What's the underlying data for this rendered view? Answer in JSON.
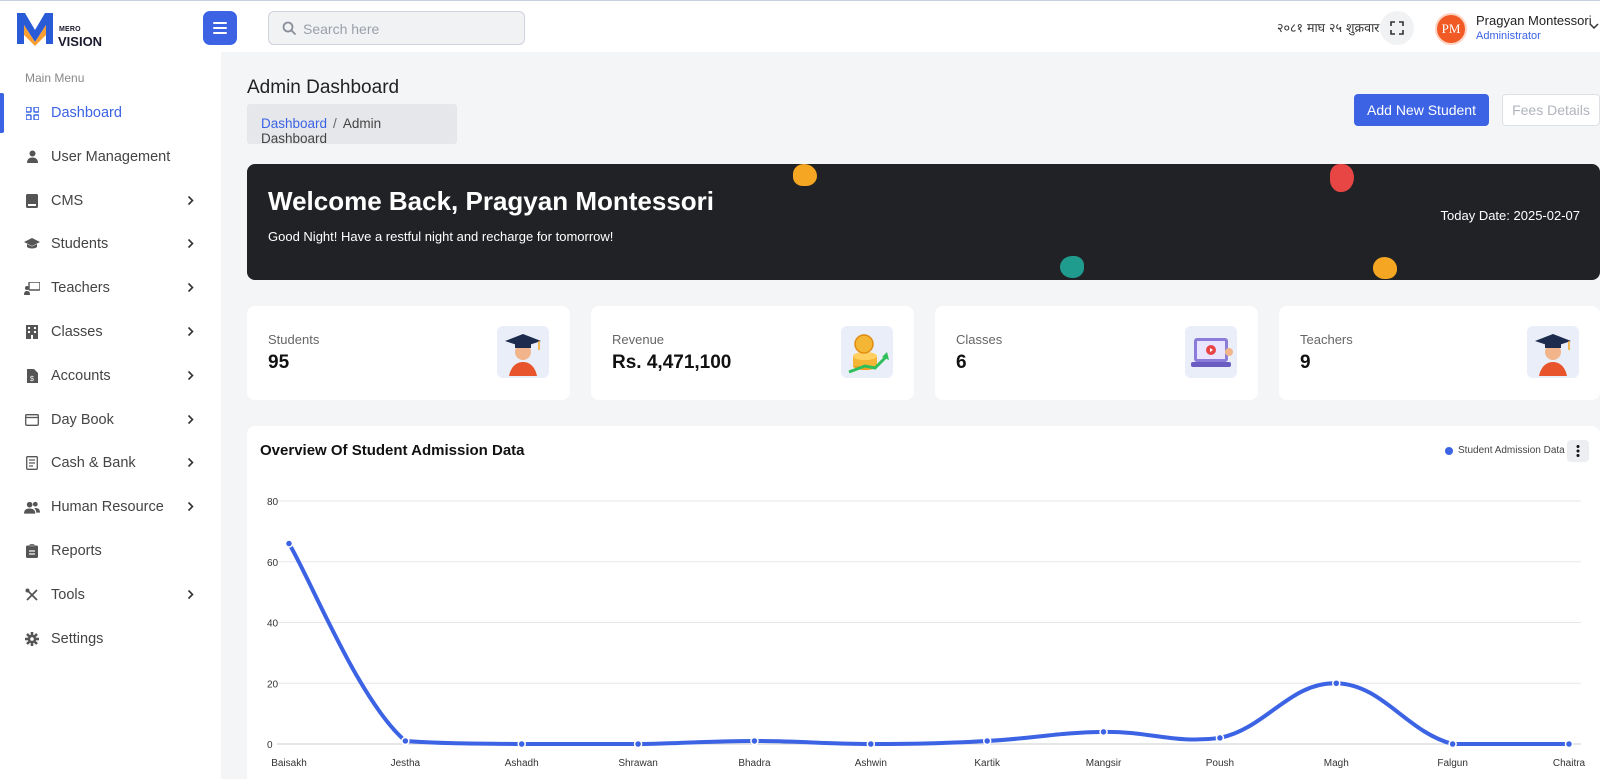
{
  "brand": {
    "small": "MERO",
    "big": "VISION"
  },
  "search": {
    "placeholder": "Search here"
  },
  "header": {
    "nepali_date": "२०८१ माघ २५ शुक्रवार",
    "user_initials": "PM",
    "user_name": "Pragyan Montessori",
    "user_role": "Administrator"
  },
  "sidebar": {
    "title": "Main Menu",
    "items": [
      {
        "label": "Dashboard",
        "icon": "grid-icon",
        "active": true,
        "chevron": false
      },
      {
        "label": "User Management",
        "icon": "user-icon",
        "active": false,
        "chevron": false
      },
      {
        "label": "CMS",
        "icon": "book-icon",
        "active": false,
        "chevron": true
      },
      {
        "label": "Students",
        "icon": "graduation-cap-icon",
        "active": false,
        "chevron": true
      },
      {
        "label": "Teachers",
        "icon": "teacher-board-icon",
        "active": false,
        "chevron": true
      },
      {
        "label": "Classes",
        "icon": "building-icon",
        "active": false,
        "chevron": true
      },
      {
        "label": "Accounts",
        "icon": "file-invoice-icon",
        "active": false,
        "chevron": true
      },
      {
        "label": "Day Book",
        "icon": "window-icon",
        "active": false,
        "chevron": true
      },
      {
        "label": "Cash & Bank",
        "icon": "receipt-icon",
        "active": false,
        "chevron": true
      },
      {
        "label": "Human Resource",
        "icon": "users-icon",
        "active": false,
        "chevron": true
      },
      {
        "label": "Reports",
        "icon": "clipboard-icon",
        "active": false,
        "chevron": false
      },
      {
        "label": "Tools",
        "icon": "tools-icon",
        "active": false,
        "chevron": true
      },
      {
        "label": "Settings",
        "icon": "gear-icon",
        "active": false,
        "chevron": false
      }
    ]
  },
  "page": {
    "title": "Admin Dashboard",
    "breadcrumb_link": "Dashboard",
    "breadcrumb_sep": "/",
    "breadcrumb_current": "Admin Dashboard",
    "add_student": "Add New Student",
    "fees_details": "Fees Details"
  },
  "welcome": {
    "heading": "Welcome Back, Pragyan Montessori",
    "message": "Good Night! Have a restful night and recharge for tomorrow!",
    "today": "Today Date: 2025-02-07"
  },
  "stats": [
    {
      "label": "Students",
      "value": "95",
      "icon": "graduate-icon"
    },
    {
      "label": "Revenue",
      "value": "Rs. 4,471,100",
      "icon": "money-growth-icon"
    },
    {
      "label": "Classes",
      "value": "6",
      "icon": "laptop-class-icon"
    },
    {
      "label": "Teachers",
      "value": "9",
      "icon": "teacher-icon"
    }
  ],
  "colors": {
    "accent": "#3b63e4",
    "banner": "#212225"
  },
  "chart_data": {
    "type": "line",
    "title": "Overview Of Student Admission Data",
    "categories": [
      "Baisakh",
      "Jestha",
      "Ashadh",
      "Shrawan",
      "Bhadra",
      "Ashwin",
      "Kartik",
      "Mangsir",
      "Poush",
      "Magh",
      "Falgun",
      "Chaitra"
    ],
    "series": [
      {
        "name": "Student Admission Data",
        "values": [
          66,
          1,
          0,
          0,
          1,
          0,
          1,
          4,
          2,
          20,
          0,
          0
        ]
      }
    ],
    "ylim": [
      0,
      80
    ],
    "yticks": [
      0,
      20,
      40,
      60,
      80
    ],
    "grid": true,
    "legend": "top-right"
  }
}
